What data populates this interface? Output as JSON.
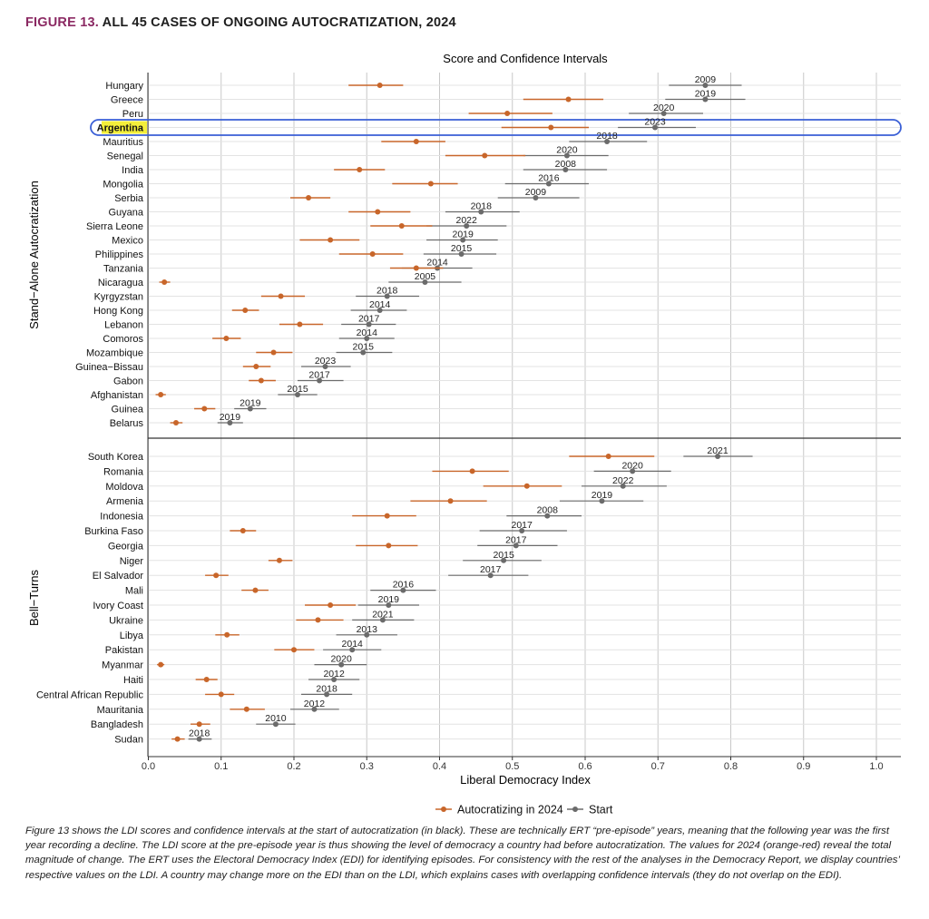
{
  "figure": {
    "number": "FIGURE 13.",
    "title": "ALL 45 CASES OF ONGOING AUTOCRATIZATION, 2024"
  },
  "colors": {
    "autocratizing": "#c8662a",
    "start": "#6b6b6b",
    "highlight_fill": "#f4ef3a",
    "highlight_border": "#3a5fd6",
    "title_accent": "#8b2a63"
  },
  "chart_data": {
    "type": "dot-range",
    "title": "Score and Confidence Intervals",
    "xlabel": "Liberal Democracy Index",
    "xlim": [
      0,
      1.03
    ],
    "xticks": [
      "0.0",
      "0.1",
      "0.2",
      "0.3",
      "0.4",
      "0.5",
      "0.6",
      "0.7",
      "0.8",
      "0.9",
      "1.0"
    ],
    "grid": true,
    "legend_position": "bottom",
    "legend": [
      {
        "key": "autocratizing",
        "label": "Autocratizing in 2024"
      },
      {
        "key": "start",
        "label": "Start"
      }
    ],
    "highlighted_country": "Argentina",
    "panels": [
      {
        "label": "Stand−Alone Autocratization",
        "rows": [
          {
            "country": "Hungary",
            "v2024": 0.318,
            "lo2024": 0.275,
            "hi2024": 0.35,
            "vstart": 0.765,
            "lostart": 0.715,
            "histart": 0.815,
            "year": "2009"
          },
          {
            "country": "Greece",
            "v2024": 0.577,
            "lo2024": 0.515,
            "hi2024": 0.625,
            "vstart": 0.765,
            "lostart": 0.71,
            "histart": 0.82,
            "year": "2019"
          },
          {
            "country": "Peru",
            "v2024": 0.493,
            "lo2024": 0.44,
            "hi2024": 0.555,
            "vstart": 0.708,
            "lostart": 0.66,
            "histart": 0.762,
            "year": "2020"
          },
          {
            "country": "Argentina",
            "v2024": 0.553,
            "lo2024": 0.485,
            "hi2024": 0.605,
            "vstart": 0.696,
            "lostart": 0.645,
            "histart": 0.752,
            "year": "2023"
          },
          {
            "country": "Mauritius",
            "v2024": 0.368,
            "lo2024": 0.32,
            "hi2024": 0.408,
            "vstart": 0.63,
            "lostart": 0.578,
            "histart": 0.685,
            "year": "2018"
          },
          {
            "country": "Senegal",
            "v2024": 0.462,
            "lo2024": 0.408,
            "hi2024": 0.518,
            "vstart": 0.575,
            "lostart": 0.515,
            "histart": 0.632,
            "year": "2020"
          },
          {
            "country": "India",
            "v2024": 0.29,
            "lo2024": 0.255,
            "hi2024": 0.325,
            "vstart": 0.573,
            "lostart": 0.515,
            "histart": 0.63,
            "year": "2008"
          },
          {
            "country": "Mongolia",
            "v2024": 0.388,
            "lo2024": 0.335,
            "hi2024": 0.425,
            "vstart": 0.55,
            "lostart": 0.49,
            "histart": 0.605,
            "year": "2016"
          },
          {
            "country": "Serbia",
            "v2024": 0.22,
            "lo2024": 0.195,
            "hi2024": 0.25,
            "vstart": 0.532,
            "lostart": 0.48,
            "histart": 0.592,
            "year": "2009"
          },
          {
            "country": "Guyana",
            "v2024": 0.315,
            "lo2024": 0.275,
            "hi2024": 0.36,
            "vstart": 0.457,
            "lostart": 0.408,
            "histart": 0.51,
            "year": "2018"
          },
          {
            "country": "Sierra Leone",
            "v2024": 0.348,
            "lo2024": 0.305,
            "hi2024": 0.39,
            "vstart": 0.437,
            "lostart": 0.382,
            "histart": 0.492,
            "year": "2022"
          },
          {
            "country": "Mexico",
            "v2024": 0.25,
            "lo2024": 0.208,
            "hi2024": 0.29,
            "vstart": 0.432,
            "lostart": 0.382,
            "histart": 0.48,
            "year": "2019"
          },
          {
            "country": "Philippines",
            "v2024": 0.308,
            "lo2024": 0.262,
            "hi2024": 0.35,
            "vstart": 0.43,
            "lostart": 0.378,
            "histart": 0.478,
            "year": "2015"
          },
          {
            "country": "Tanzania",
            "v2024": 0.368,
            "lo2024": 0.332,
            "hi2024": 0.405,
            "vstart": 0.397,
            "lostart": 0.348,
            "histart": 0.445,
            "year": "2014"
          },
          {
            "country": "Nicaragua",
            "v2024": 0.022,
            "lo2024": 0.015,
            "hi2024": 0.03,
            "vstart": 0.38,
            "lostart": 0.33,
            "histart": 0.43,
            "year": "2005"
          },
          {
            "country": "Kyrgyzstan",
            "v2024": 0.182,
            "lo2024": 0.155,
            "hi2024": 0.215,
            "vstart": 0.328,
            "lostart": 0.285,
            "histart": 0.372,
            "year": "2018"
          },
          {
            "country": "Hong Kong",
            "v2024": 0.133,
            "lo2024": 0.115,
            "hi2024": 0.152,
            "vstart": 0.318,
            "lostart": 0.278,
            "histart": 0.355,
            "year": "2014"
          },
          {
            "country": "Lebanon",
            "v2024": 0.208,
            "lo2024": 0.18,
            "hi2024": 0.24,
            "vstart": 0.303,
            "lostart": 0.265,
            "histart": 0.34,
            "year": "2017"
          },
          {
            "country": "Comoros",
            "v2024": 0.107,
            "lo2024": 0.088,
            "hi2024": 0.127,
            "vstart": 0.3,
            "lostart": 0.262,
            "histart": 0.338,
            "year": "2014"
          },
          {
            "country": "Mozambique",
            "v2024": 0.172,
            "lo2024": 0.148,
            "hi2024": 0.198,
            "vstart": 0.295,
            "lostart": 0.258,
            "histart": 0.335,
            "year": "2015"
          },
          {
            "country": "Guinea−Bissau",
            "v2024": 0.148,
            "lo2024": 0.13,
            "hi2024": 0.168,
            "vstart": 0.243,
            "lostart": 0.21,
            "histart": 0.278,
            "year": "2023"
          },
          {
            "country": "Gabon",
            "v2024": 0.155,
            "lo2024": 0.138,
            "hi2024": 0.175,
            "vstart": 0.235,
            "lostart": 0.205,
            "histart": 0.268,
            "year": "2017"
          },
          {
            "country": "Afghanistan",
            "v2024": 0.017,
            "lo2024": 0.01,
            "hi2024": 0.024,
            "vstart": 0.205,
            "lostart": 0.178,
            "histart": 0.232,
            "year": "2015"
          },
          {
            "country": "Guinea",
            "v2024": 0.077,
            "lo2024": 0.063,
            "hi2024": 0.092,
            "vstart": 0.14,
            "lostart": 0.118,
            "histart": 0.162,
            "year": "2019"
          },
          {
            "country": "Belarus",
            "v2024": 0.038,
            "lo2024": 0.03,
            "hi2024": 0.047,
            "vstart": 0.112,
            "lostart": 0.095,
            "histart": 0.13,
            "year": "2019"
          }
        ]
      },
      {
        "label": "Bell−Turns",
        "rows": [
          {
            "country": "South Korea",
            "v2024": 0.632,
            "lo2024": 0.578,
            "hi2024": 0.695,
            "vstart": 0.782,
            "lostart": 0.735,
            "histart": 0.83,
            "year": "2021"
          },
          {
            "country": "Romania",
            "v2024": 0.445,
            "lo2024": 0.39,
            "hi2024": 0.495,
            "vstart": 0.665,
            "lostart": 0.612,
            "histart": 0.718,
            "year": "2020"
          },
          {
            "country": "Moldova",
            "v2024": 0.52,
            "lo2024": 0.46,
            "hi2024": 0.568,
            "vstart": 0.652,
            "lostart": 0.595,
            "histart": 0.712,
            "year": "2022"
          },
          {
            "country": "Armenia",
            "v2024": 0.415,
            "lo2024": 0.36,
            "hi2024": 0.465,
            "vstart": 0.623,
            "lostart": 0.565,
            "histart": 0.68,
            "year": "2019"
          },
          {
            "country": "Indonesia",
            "v2024": 0.328,
            "lo2024": 0.28,
            "hi2024": 0.368,
            "vstart": 0.548,
            "lostart": 0.492,
            "histart": 0.595,
            "year": "2008"
          },
          {
            "country": "Burkina Faso",
            "v2024": 0.13,
            "lo2024": 0.112,
            "hi2024": 0.148,
            "vstart": 0.513,
            "lostart": 0.455,
            "histart": 0.575,
            "year": "2017"
          },
          {
            "country": "Georgia",
            "v2024": 0.33,
            "lo2024": 0.285,
            "hi2024": 0.37,
            "vstart": 0.505,
            "lostart": 0.452,
            "histart": 0.562,
            "year": "2017"
          },
          {
            "country": "Niger",
            "v2024": 0.18,
            "lo2024": 0.165,
            "hi2024": 0.198,
            "vstart": 0.488,
            "lostart": 0.432,
            "histart": 0.54,
            "year": "2015"
          },
          {
            "country": "El Salvador",
            "v2024": 0.093,
            "lo2024": 0.078,
            "hi2024": 0.11,
            "vstart": 0.47,
            "lostart": 0.412,
            "histart": 0.522,
            "year": "2017"
          },
          {
            "country": "Mali",
            "v2024": 0.147,
            "lo2024": 0.128,
            "hi2024": 0.165,
            "vstart": 0.35,
            "lostart": 0.305,
            "histart": 0.395,
            "year": "2016"
          },
          {
            "country": "Ivory Coast",
            "v2024": 0.25,
            "lo2024": 0.215,
            "hi2024": 0.285,
            "vstart": 0.33,
            "lostart": 0.288,
            "histart": 0.372,
            "year": "2019"
          },
          {
            "country": "Ukraine",
            "v2024": 0.233,
            "lo2024": 0.203,
            "hi2024": 0.268,
            "vstart": 0.322,
            "lostart": 0.28,
            "histart": 0.365,
            "year": "2021"
          },
          {
            "country": "Libya",
            "v2024": 0.108,
            "lo2024": 0.092,
            "hi2024": 0.125,
            "vstart": 0.3,
            "lostart": 0.258,
            "histart": 0.342,
            "year": "2013"
          },
          {
            "country": "Pakistan",
            "v2024": 0.2,
            "lo2024": 0.173,
            "hi2024": 0.228,
            "vstart": 0.28,
            "lostart": 0.24,
            "histart": 0.32,
            "year": "2014"
          },
          {
            "country": "Myanmar",
            "v2024": 0.017,
            "lo2024": 0.012,
            "hi2024": 0.022,
            "vstart": 0.265,
            "lostart": 0.228,
            "histart": 0.3,
            "year": "2020"
          },
          {
            "country": "Haiti",
            "v2024": 0.08,
            "lo2024": 0.065,
            "hi2024": 0.095,
            "vstart": 0.255,
            "lostart": 0.22,
            "histart": 0.29,
            "year": "2012"
          },
          {
            "country": "Central African Republic",
            "v2024": 0.1,
            "lo2024": 0.078,
            "hi2024": 0.118,
            "vstart": 0.245,
            "lostart": 0.21,
            "histart": 0.28,
            "year": "2018"
          },
          {
            "country": "Mauritania",
            "v2024": 0.135,
            "lo2024": 0.112,
            "hi2024": 0.16,
            "vstart": 0.228,
            "lostart": 0.195,
            "histart": 0.262,
            "year": "2012"
          },
          {
            "country": "Bangladesh",
            "v2024": 0.07,
            "lo2024": 0.058,
            "hi2024": 0.085,
            "vstart": 0.175,
            "lostart": 0.148,
            "histart": 0.202,
            "year": "2010"
          },
          {
            "country": "Sudan",
            "v2024": 0.04,
            "lo2024": 0.032,
            "hi2024": 0.05,
            "vstart": 0.07,
            "lostart": 0.055,
            "histart": 0.087,
            "year": "2018"
          }
        ]
      }
    ]
  },
  "caption": "Figure 13 shows the LDI scores and confidence intervals at the start of autocratization (in black). These are technically ERT “pre-episode” years, meaning that the following year was the first year recording a decline. The LDI score at the pre-episode year is thus showing the level of democracy a country had before autocratization. The values for 2024 (orange-red) reveal the total magnitude of change. The ERT uses the Electoral Democracy Index (EDI) for identifying episodes. For consistency with the rest of the analyses in the Democracy Report, we display countries’ respective values on the LDI. A country may change more on the EDI than on the LDI, which explains cases with overlapping confidence intervals (they do not overlap on the EDI)."
}
